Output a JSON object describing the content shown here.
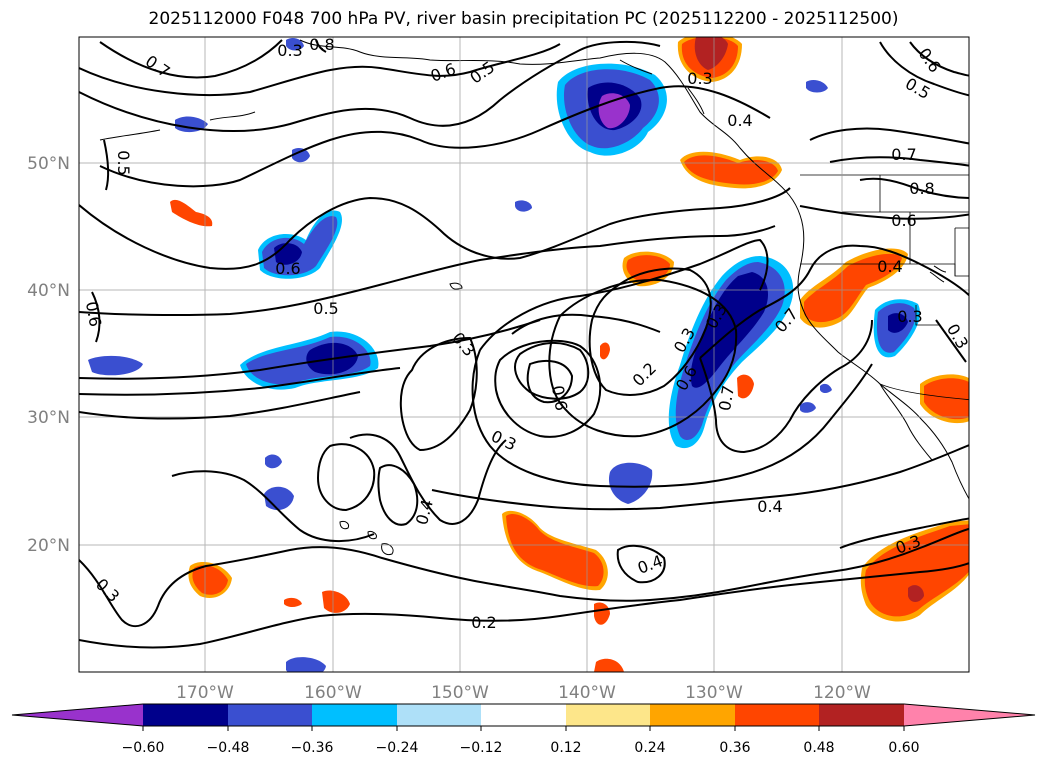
{
  "title": "2025112000 F048 700 hPa PV, river basin precipitation PC (2025112200 - 2025112500)",
  "axes": {
    "lat_labels": [
      "50°N",
      "40°N",
      "30°N",
      "20°N"
    ],
    "lon_labels": [
      "170°W",
      "160°W",
      "150°W",
      "140°W",
      "130°W",
      "120°W"
    ]
  },
  "contour_labels": [
    "0.7",
    "0.8",
    "0.6",
    "0.5",
    "0.3",
    "0.4",
    "0.6",
    "0.5",
    "0.5",
    "0.7",
    "0.8",
    "0.6",
    "0.4",
    "0.6",
    "0.5",
    "0.3",
    "0.2",
    "0.3",
    "0.6",
    "0.3",
    "0.3",
    "0.7",
    "0.7",
    "0.3",
    "0.6",
    "0.3",
    "0.4",
    "0.4",
    "0.4",
    "0.3",
    "0.3",
    "0.2",
    "0.6",
    "0.3"
  ],
  "colorbar": {
    "ticks": [
      "−0.60",
      "−0.48",
      "−0.36",
      "−0.24",
      "−0.12",
      "0.12",
      "0.24",
      "0.36",
      "0.48",
      "0.60"
    ],
    "colors": [
      "#9932cc",
      "#00008b",
      "#3a4fd0",
      "#00bfff",
      "#aee0f8",
      "#ffffff",
      "#fde68a",
      "#ffa500",
      "#ff4500",
      "#b22222",
      "#ff82ab"
    ]
  },
  "chart_data": {
    "type": "heatmap",
    "title": "2025112000 F048 700 hPa PV, river basin precipitation PC (2025112200 - 2025112500)",
    "fields": [
      "700 hPa PV (contours)",
      "river basin precipitation PC (shaded)"
    ],
    "lat_range": [
      10,
      60
    ],
    "lon_range": [
      -180,
      -110
    ],
    "lat_ticks": [
      50,
      40,
      30,
      20
    ],
    "lon_ticks": [
      -170,
      -160,
      -150,
      -140,
      -130,
      -120
    ],
    "grid": true,
    "colorbar_levels": [
      -0.6,
      -0.48,
      -0.36,
      -0.24,
      -0.12,
      0.12,
      0.24,
      0.36,
      0.48,
      0.6
    ],
    "contour_levels": [
      0.2,
      0.3,
      0.4,
      0.5,
      0.6,
      0.7,
      0.8
    ]
  }
}
